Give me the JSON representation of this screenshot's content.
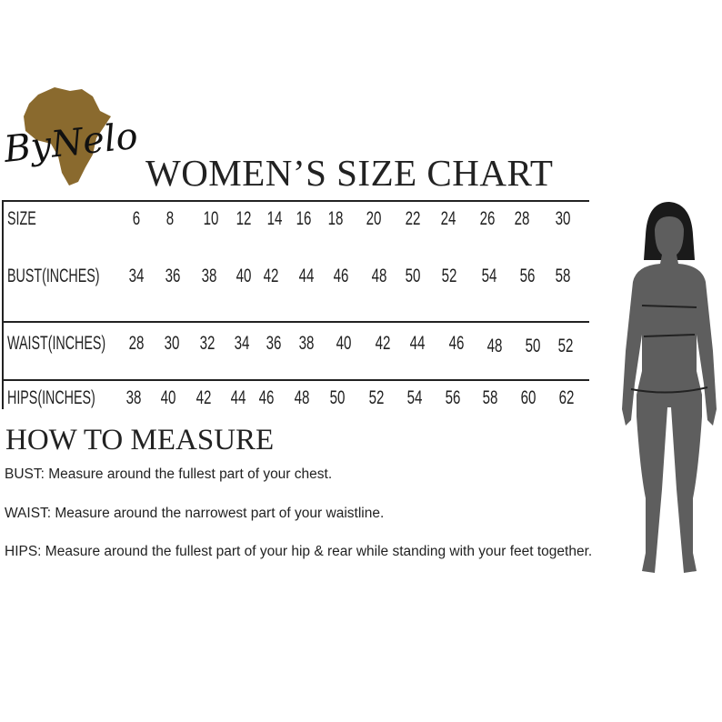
{
  "logo": {
    "text": "ByNelo",
    "map_color": "#8a6a2e"
  },
  "title": "WOMEN’S SIZE CHART",
  "table": {
    "rows": [
      {
        "label": "SIZE",
        "values": [
          "6",
          "8",
          "10",
          "12",
          "14",
          "16",
          "18",
          "20",
          "22",
          "24",
          "26",
          "28",
          "30"
        ]
      },
      {
        "label": "BUST(INCHES)",
        "values": [
          "34",
          "36",
          "38",
          "40",
          "42",
          "44",
          "46",
          "48",
          "50",
          "52",
          "54",
          "56",
          "58"
        ]
      },
      {
        "label": "WAIST(INCHES)",
        "values": [
          "28",
          "30",
          "32",
          "34",
          "36",
          "38",
          "40",
          "42",
          "44",
          "46",
          "48",
          "50",
          "52"
        ]
      },
      {
        "label": "HIPS(INCHES)",
        "values": [
          "38",
          "40",
          "42",
          "44",
          "46",
          "48",
          "50",
          "52",
          "54",
          "56",
          "58",
          "60",
          "62"
        ]
      }
    ]
  },
  "how_to": {
    "heading": "HOW TO MEASURE",
    "bust": "BUST: Measure around the fullest part of your chest.",
    "waist": "WAIST: Measure around the narrowest part of your waistline.",
    "hips": "HIPS: Measure around the fullest part of your hip & rear while standing with your feet together."
  },
  "figure": {
    "body_color": "#5e5e5e",
    "hair_color": "#1a1a1a"
  }
}
